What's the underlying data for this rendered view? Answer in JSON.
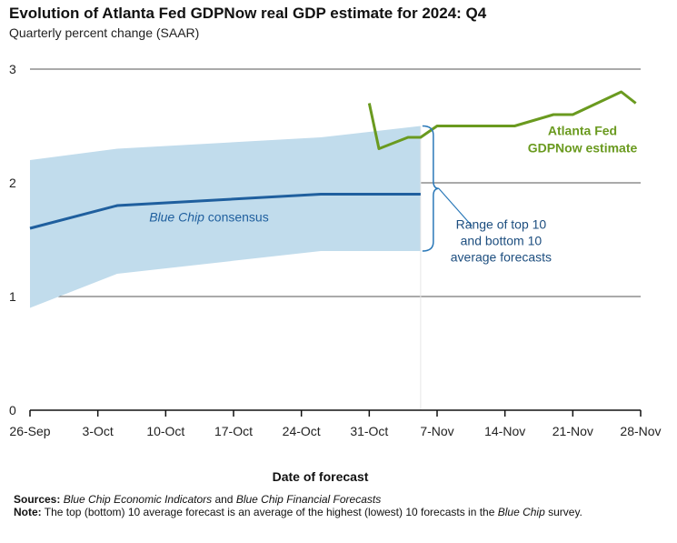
{
  "title": "Evolution of Atlanta Fed GDPNow real GDP estimate for 2024: Q4",
  "subtitle": "Quarterly percent change (SAAR)",
  "xlabel": "Date of forecast",
  "sources": {
    "label": "Sources:",
    "part1": "Blue Chip Economic Indicators",
    "part2": " and ",
    "part3": "Blue Chip Financial Forecasts"
  },
  "note": {
    "label": "Note:",
    "part1": " The top (bottom) 10 average forecast is an average of the highest (lowest) 10 forecasts in the ",
    "part2": "Blue Chip",
    "part3": " survey."
  },
  "colors": {
    "gdpnow": "#6a9a1f",
    "bluechip": "#1f5f9e",
    "band": "#c1dcec",
    "bracket": "#2a78b8",
    "grid": "#555555",
    "axis": "#111111"
  },
  "chart_data": {
    "type": "line",
    "title": "Evolution of Atlanta Fed GDPNow real GDP estimate for 2024: Q4",
    "ylabel": "Quarterly percent change (SAAR)",
    "xlabel": "Date of forecast",
    "xlim": [
      0,
      63
    ],
    "ylim": [
      0,
      3
    ],
    "yticks": [
      0,
      1,
      2,
      3
    ],
    "xticks": [
      {
        "day": 0,
        "label": "26-Sep"
      },
      {
        "day": 7,
        "label": "3-Oct"
      },
      {
        "day": 14,
        "label": "10-Oct"
      },
      {
        "day": 21,
        "label": "17-Oct"
      },
      {
        "day": 28,
        "label": "24-Oct"
      },
      {
        "day": 35,
        "label": "31-Oct"
      },
      {
        "day": 42,
        "label": "7-Nov"
      },
      {
        "day": 49,
        "label": "14-Nov"
      },
      {
        "day": 56,
        "label": "21-Nov"
      },
      {
        "day": 63,
        "label": "28-Nov"
      }
    ],
    "band": {
      "name": "Range of top 10 and bottom 10 average forecasts",
      "x": [
        0,
        9,
        30,
        40.3
      ],
      "upper": [
        2.2,
        2.3,
        2.4,
        2.5
      ],
      "lower": [
        0.9,
        1.2,
        1.4,
        1.4
      ]
    },
    "series": [
      {
        "name": "Blue Chip consensus",
        "x": [
          0,
          9,
          30,
          40.3
        ],
        "values": [
          1.6,
          1.8,
          1.9,
          1.9
        ]
      },
      {
        "name": "Atlanta Fed GDPNow estimate",
        "x": [
          35,
          36,
          39,
          40.3,
          42,
          43,
          44,
          50,
          54,
          56,
          61,
          62.5
        ],
        "values": [
          2.7,
          2.3,
          2.4,
          2.4,
          2.5,
          2.5,
          2.5,
          2.5,
          2.6,
          2.6,
          2.8,
          2.7
        ]
      }
    ],
    "annotations": {
      "bluechip_label": "Blue Chip consensus",
      "bluechip_italic": "Blue Chip",
      "bluechip_rest": " consensus",
      "gdpnow_line1": "Atlanta Fed",
      "gdpnow_line2": "GDPNow estimate",
      "range_line1": "Range of top 10",
      "range_line2": "and bottom 10",
      "range_line3": "average forecasts"
    }
  }
}
